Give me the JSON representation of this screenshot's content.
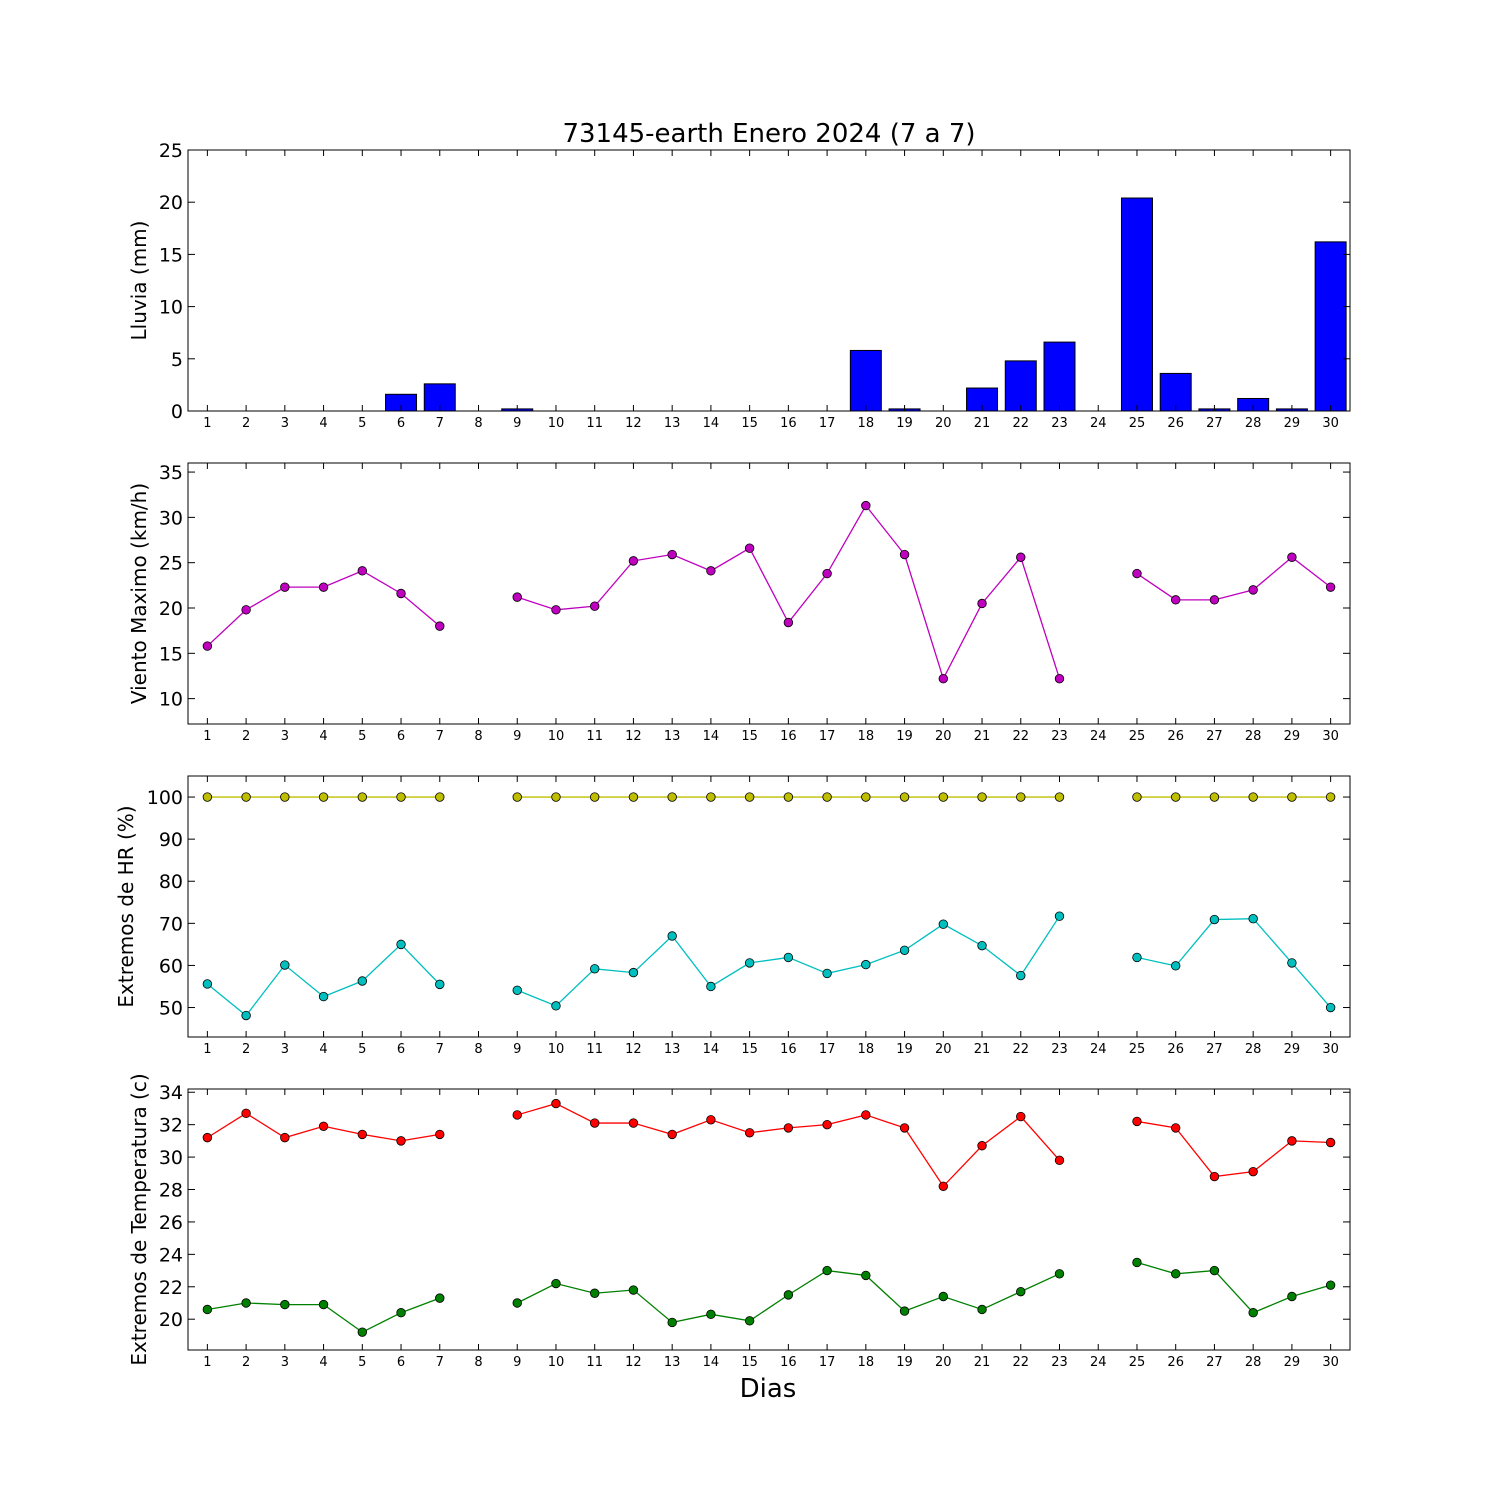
{
  "chart_data": {
    "title": "73145-earth Enero 2024  (7 a 7)",
    "xlabel": "Dias",
    "x": [
      1,
      2,
      3,
      4,
      5,
      6,
      7,
      8,
      9,
      10,
      11,
      12,
      13,
      14,
      15,
      16,
      17,
      18,
      19,
      20,
      21,
      22,
      23,
      24,
      25,
      26,
      27,
      28,
      29,
      30
    ],
    "panels": [
      {
        "type": "bar",
        "ylabel": "Lluvia (mm)",
        "ylim": [
          0,
          25
        ],
        "yticks": [
          0,
          5,
          10,
          15,
          20,
          25
        ],
        "series": [
          {
            "color": "#0000ff",
            "values": [
              0,
              0,
              0,
              0,
              0,
              1.6,
              2.6,
              null,
              0.2,
              0,
              0,
              0,
              0,
              0,
              0,
              0,
              null,
              5.8,
              0.2,
              0,
              2.2,
              4.8,
              6.6,
              null,
              20.4,
              3.6,
              0.2,
              1.2,
              0.2,
              16.2
            ]
          }
        ]
      },
      {
        "type": "line",
        "ylabel": "Viento Maximo (km/h)",
        "ylim": [
          7.2,
          36
        ],
        "yticks": [
          10,
          15,
          20,
          25,
          30,
          35
        ],
        "series": [
          {
            "color": "#bf00bf",
            "values": [
              15.8,
              19.8,
              22.3,
              22.3,
              24.1,
              21.6,
              18.0,
              null,
              21.2,
              19.8,
              20.2,
              25.2,
              25.9,
              24.1,
              26.6,
              18.4,
              23.8,
              31.3,
              25.9,
              12.2,
              20.5,
              25.6,
              12.2,
              null,
              23.8,
              20.9,
              20.9,
              22.0,
              25.6,
              22.3
            ]
          }
        ]
      },
      {
        "type": "line",
        "ylabel": "Extremos de HR (%)",
        "ylim": [
          43,
          105
        ],
        "yticks": [
          50,
          60,
          70,
          80,
          90,
          100
        ],
        "series": [
          {
            "color": "#bfbf00",
            "values": [
              100,
              100,
              100,
              100,
              100,
              100,
              100,
              null,
              100,
              100,
              100,
              100,
              100,
              100,
              100,
              100,
              100,
              100,
              100,
              100,
              100,
              100,
              100,
              null,
              100,
              100,
              100,
              100,
              100,
              100
            ]
          },
          {
            "color": "#00bfbf",
            "values": [
              55.6,
              48.1,
              60.1,
              52.6,
              56.3,
              65.0,
              55.5,
              null,
              54.1,
              50.4,
              59.2,
              58.3,
              67.0,
              55.0,
              60.6,
              61.9,
              58.1,
              60.2,
              63.6,
              69.8,
              64.7,
              57.6,
              71.7,
              null,
              61.9,
              59.9,
              70.9,
              71.1,
              60.6,
              50.0
            ]
          }
        ]
      },
      {
        "type": "line",
        "ylabel": "Extremos de Temperatura (c)",
        "ylim": [
          18.1,
          34.2
        ],
        "yticks": [
          20,
          22,
          24,
          26,
          28,
          30,
          32,
          34
        ],
        "series": [
          {
            "color": "#ff0000",
            "values": [
              31.2,
              32.7,
              31.2,
              31.9,
              31.4,
              31.0,
              31.4,
              null,
              32.6,
              33.3,
              32.1,
              32.1,
              31.4,
              32.3,
              31.5,
              31.8,
              32.0,
              32.6,
              31.8,
              28.2,
              30.7,
              32.5,
              29.8,
              null,
              32.2,
              31.8,
              28.8,
              29.1,
              31.0,
              30.9
            ]
          },
          {
            "color": "#008000",
            "values": [
              20.6,
              21.0,
              20.9,
              20.9,
              19.2,
              20.4,
              21.3,
              null,
              21.0,
              22.2,
              21.6,
              21.8,
              19.8,
              20.3,
              19.9,
              21.5,
              23.0,
              22.7,
              20.5,
              21.4,
              20.6,
              21.7,
              22.8,
              null,
              23.5,
              22.8,
              23.0,
              20.4,
              21.4,
              22.1
            ]
          }
        ]
      }
    ]
  }
}
